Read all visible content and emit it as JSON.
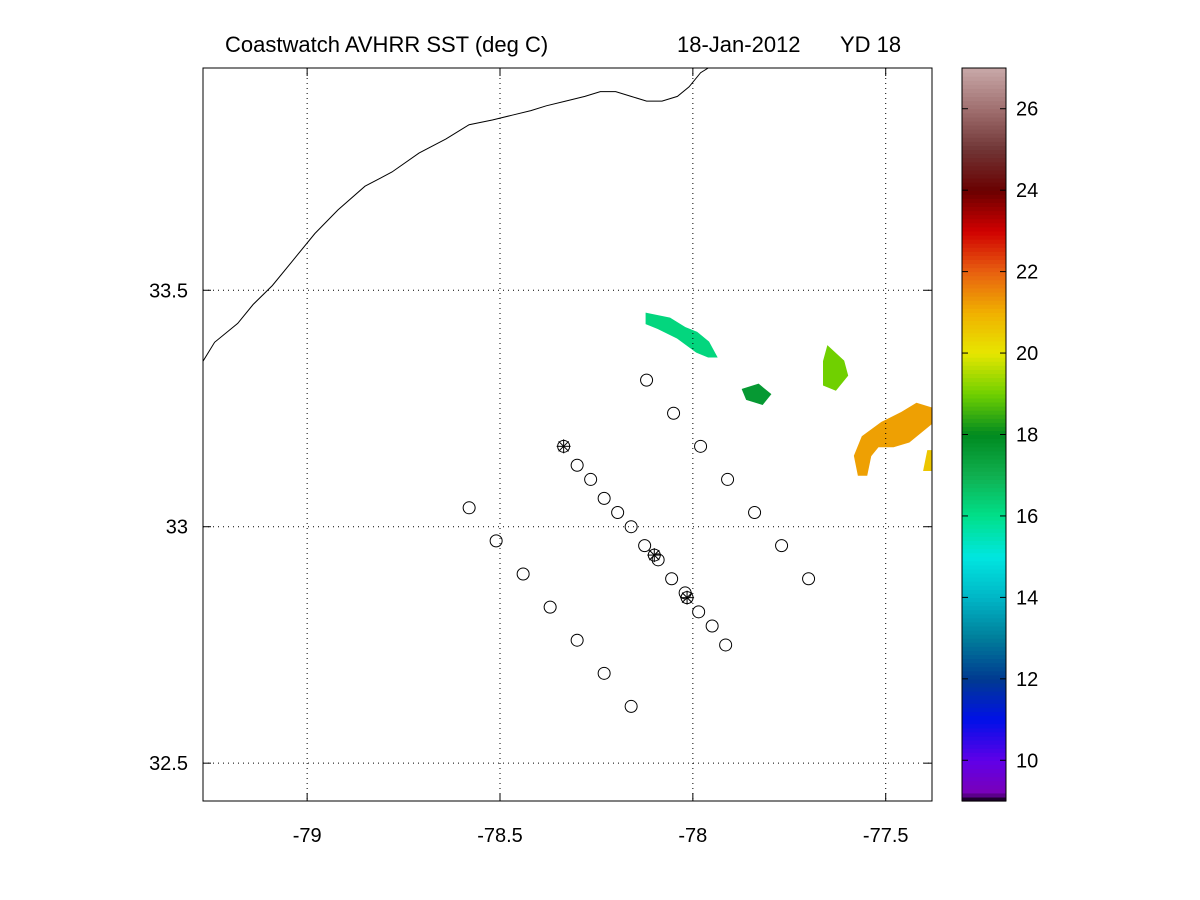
{
  "title": {
    "product": "Coastwatch  AVHRR  SST  (deg C)",
    "date": "18-Jan-2012",
    "yearday": "YD 18"
  },
  "chart_data": {
    "type": "map",
    "xlim": [
      -79.27,
      -77.38
    ],
    "ylim": [
      32.42,
      33.97
    ],
    "x_ticks": [
      -79,
      -78.5,
      -78,
      -77.5
    ],
    "x_tick_labels": [
      "-79",
      "-78.5",
      "-78",
      "-77.5"
    ],
    "y_ticks": [
      32.5,
      33,
      33.5
    ],
    "y_tick_labels": [
      "32.5",
      "33",
      "33.5"
    ],
    "grid": "dotted",
    "colorbar": {
      "range": [
        9,
        27
      ],
      "ticks": [
        10,
        12,
        14,
        16,
        18,
        20,
        22,
        24,
        26
      ],
      "tick_labels": [
        "10",
        "12",
        "14",
        "16",
        "18",
        "20",
        "22",
        "24",
        "26"
      ],
      "colors": [
        {
          "v": 9.0,
          "c": "#000000"
        },
        {
          "v": 9.2,
          "c": "#7a00b8"
        },
        {
          "v": 10.0,
          "c": "#6000e8"
        },
        {
          "v": 11.0,
          "c": "#0010e8"
        },
        {
          "v": 12.0,
          "c": "#003a90"
        },
        {
          "v": 13.0,
          "c": "#007d9a"
        },
        {
          "v": 14.0,
          "c": "#00b6c6"
        },
        {
          "v": 15.0,
          "c": "#00e6e0"
        },
        {
          "v": 16.0,
          "c": "#00e08a"
        },
        {
          "v": 17.0,
          "c": "#10b050"
        },
        {
          "v": 18.0,
          "c": "#008a20"
        },
        {
          "v": 19.0,
          "c": "#70d000"
        },
        {
          "v": 20.0,
          "c": "#e6e600"
        },
        {
          "v": 21.0,
          "c": "#f0b000"
        },
        {
          "v": 22.0,
          "c": "#e86010"
        },
        {
          "v": 23.0,
          "c": "#d00000"
        },
        {
          "v": 24.0,
          "c": "#6a0000"
        },
        {
          "v": 25.0,
          "c": "#703535"
        },
        {
          "v": 26.0,
          "c": "#a07070"
        },
        {
          "v": 27.0,
          "c": "#c8a8a8"
        }
      ]
    },
    "stations_circle": [
      [
        -78.12,
        33.31
      ],
      [
        -78.05,
        33.24
      ],
      [
        -77.98,
        33.17
      ],
      [
        -77.91,
        33.1
      ],
      [
        -77.84,
        33.03
      ],
      [
        -77.77,
        32.96
      ],
      [
        -77.7,
        32.89
      ],
      [
        -78.58,
        33.04
      ],
      [
        -78.51,
        32.97
      ],
      [
        -78.44,
        32.9
      ],
      [
        -78.37,
        32.83
      ],
      [
        -78.3,
        32.76
      ],
      [
        -78.23,
        32.69
      ],
      [
        -78.16,
        32.62
      ],
      [
        -78.3,
        33.13
      ],
      [
        -78.265,
        33.1
      ],
      [
        -78.23,
        33.06
      ],
      [
        -78.195,
        33.03
      ],
      [
        -78.16,
        33.0
      ],
      [
        -78.125,
        32.96
      ],
      [
        -78.09,
        32.93
      ],
      [
        -78.055,
        32.89
      ],
      [
        -78.02,
        32.86
      ],
      [
        -77.985,
        32.82
      ],
      [
        -77.95,
        32.79
      ],
      [
        -77.915,
        32.75
      ]
    ],
    "stations_star": [
      [
        -78.335,
        33.17
      ],
      [
        -78.1,
        32.94
      ],
      [
        -78.015,
        32.85
      ]
    ],
    "coastline": [
      [
        -79.27,
        33.35
      ],
      [
        -79.24,
        33.39
      ],
      [
        -79.18,
        33.43
      ],
      [
        -79.14,
        33.47
      ],
      [
        -79.09,
        33.51
      ],
      [
        -79.04,
        33.56
      ],
      [
        -78.98,
        33.62
      ],
      [
        -78.92,
        33.67
      ],
      [
        -78.85,
        33.72
      ],
      [
        -78.78,
        33.75
      ],
      [
        -78.71,
        33.79
      ],
      [
        -78.64,
        33.82
      ],
      [
        -78.58,
        33.85
      ],
      [
        -78.52,
        33.86
      ],
      [
        -78.47,
        33.87
      ],
      [
        -78.42,
        33.88
      ],
      [
        -78.38,
        33.89
      ],
      [
        -78.33,
        33.9
      ],
      [
        -78.28,
        33.91
      ],
      [
        -78.24,
        33.92
      ],
      [
        -78.2,
        33.92
      ],
      [
        -78.16,
        33.91
      ],
      [
        -78.12,
        33.9
      ],
      [
        -78.08,
        33.9
      ],
      [
        -78.04,
        33.91
      ],
      [
        -78.01,
        33.93
      ],
      [
        -77.98,
        33.96
      ],
      [
        -77.96,
        33.97
      ]
    ],
    "sst_patches": [
      {
        "points": [
          [
            -78.12,
            33.45
          ],
          [
            -78.06,
            33.44
          ],
          [
            -78.02,
            33.42
          ],
          [
            -77.99,
            33.41
          ],
          [
            -77.96,
            33.39
          ],
          [
            -77.94,
            33.36
          ],
          [
            -77.96,
            33.36
          ],
          [
            -77.99,
            33.37
          ],
          [
            -78.04,
            33.4
          ],
          [
            -78.09,
            33.42
          ],
          [
            -78.12,
            33.43
          ]
        ],
        "value": 16.2
      },
      {
        "points": [
          [
            -77.87,
            33.29
          ],
          [
            -77.83,
            33.3
          ],
          [
            -77.8,
            33.28
          ],
          [
            -77.82,
            33.26
          ],
          [
            -77.86,
            33.27
          ]
        ],
        "value": 17.6
      },
      {
        "points": [
          [
            -77.65,
            33.38
          ],
          [
            -77.61,
            33.35
          ],
          [
            -77.6,
            33.32
          ],
          [
            -77.63,
            33.29
          ],
          [
            -77.66,
            33.3
          ],
          [
            -77.66,
            33.35
          ]
        ],
        "value": 19.0
      },
      {
        "points": [
          [
            -77.42,
            33.26
          ],
          [
            -77.38,
            33.25
          ],
          [
            -77.38,
            33.22
          ],
          [
            -77.44,
            33.18
          ],
          [
            -77.48,
            33.17
          ],
          [
            -77.52,
            33.17
          ],
          [
            -77.54,
            33.15
          ],
          [
            -77.55,
            33.11
          ],
          [
            -77.57,
            33.11
          ],
          [
            -77.58,
            33.15
          ],
          [
            -77.56,
            33.19
          ],
          [
            -77.51,
            33.22
          ],
          [
            -77.46,
            33.24
          ]
        ],
        "value": 21.2
      },
      {
        "points": [
          [
            -77.39,
            33.16
          ],
          [
            -77.38,
            33.16
          ],
          [
            -77.38,
            33.12
          ],
          [
            -77.4,
            33.12
          ]
        ],
        "value": 20.6
      }
    ]
  }
}
